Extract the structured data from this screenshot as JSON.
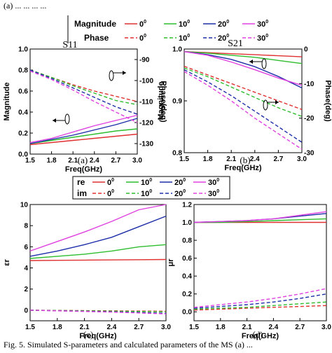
{
  "top_caption": "(a) ... ... ... ...",
  "bottom_caption": "Fig. 5. Simulated S-parameters and calculated parameters of the MS (a) ...",
  "legend_top": {
    "row1_label": "Magnitude",
    "row2_label": "Phase",
    "angles": [
      "0",
      "10",
      "20",
      "30"
    ],
    "degree_mark": "0"
  },
  "legend_bottom": {
    "row1_label": "re",
    "row2_label": "im",
    "angles": [
      "0",
      "10",
      "20",
      "30"
    ],
    "degree_mark": "0"
  },
  "colors": {
    "s0": "#e03030",
    "s10": "#2ebd2e",
    "s20": "#1d2ea8",
    "s30": "#e040e0"
  },
  "chart_data": [
    {
      "id": "a",
      "type": "line",
      "title": "S11",
      "panel_label": "(a)",
      "xlabel": "Freq(GHz)",
      "ylabel": "Magnitude",
      "y2label": "Phase(deg)",
      "xlim": [
        1.5,
        3.0
      ],
      "ylim": [
        0.0,
        1.0
      ],
      "y2lim": [
        -135,
        -85
      ],
      "xticks": [
        "1.5",
        "1.8",
        "2.1",
        "2.4",
        "2.7",
        "3.0"
      ],
      "yticks": [
        "0.0",
        "0.2",
        "0.4",
        "0.6",
        "0.8",
        "1.0"
      ],
      "y2ticks": [
        "-90",
        "-100",
        "-110",
        "-120",
        "-130"
      ],
      "x": [
        1.5,
        1.8,
        2.1,
        2.4,
        2.7,
        3.0
      ],
      "series": [
        {
          "name": "Magnitude 0",
          "axis": "y",
          "style": "solid",
          "values": [
            0.09,
            0.11,
            0.13,
            0.15,
            0.17,
            0.19
          ]
        },
        {
          "name": "Magnitude 10",
          "axis": "y",
          "style": "solid",
          "values": [
            0.1,
            0.13,
            0.16,
            0.19,
            0.22,
            0.24
          ]
        },
        {
          "name": "Magnitude 20",
          "axis": "y",
          "style": "solid",
          "values": [
            0.1,
            0.14,
            0.18,
            0.23,
            0.28,
            0.34
          ]
        },
        {
          "name": "Magnitude 30",
          "axis": "y",
          "style": "solid",
          "values": [
            0.11,
            0.15,
            0.21,
            0.27,
            0.32,
            0.37
          ]
        },
        {
          "name": "Phase 0",
          "axis": "y2",
          "style": "dashed",
          "values": [
            -95.0,
            -98.5,
            -102.0,
            -105.0,
            -107.5,
            -110.0
          ]
        },
        {
          "name": "Phase 10",
          "axis": "y2",
          "style": "dashed",
          "values": [
            -95.0,
            -98.5,
            -102.5,
            -106.0,
            -109.5,
            -111.5
          ]
        },
        {
          "name": "Phase 20",
          "axis": "y2",
          "style": "dashed",
          "values": [
            -95.0,
            -99.0,
            -103.5,
            -108.0,
            -112.5,
            -116.0
          ]
        },
        {
          "name": "Phase 30",
          "axis": "y2",
          "style": "dashed",
          "values": [
            -95.5,
            -99.5,
            -104.5,
            -110.0,
            -115.0,
            -120.0
          ]
        }
      ]
    },
    {
      "id": "b",
      "type": "line",
      "title": "S21",
      "panel_label": "(b)",
      "xlabel": "Freq(GHz)",
      "ylabel": "Magnitude",
      "y2label": "Phase(deg)",
      "xlim": [
        1.5,
        3.0
      ],
      "ylim": [
        0.8,
        1.0
      ],
      "y2lim": [
        -30,
        0
      ],
      "xticks": [
        "1.5",
        "1.8",
        "2.1",
        "2.4",
        "2.7",
        "3.0"
      ],
      "yticks": [
        "0.8",
        "0.9",
        "1.0"
      ],
      "y2ticks": [
        "0",
        "-10",
        "-20",
        "-30"
      ],
      "x": [
        1.5,
        1.8,
        2.1,
        2.4,
        2.7,
        3.0
      ],
      "series": [
        {
          "name": "Magnitude 0",
          "axis": "y",
          "style": "solid",
          "values": [
            0.995,
            0.993,
            0.991,
            0.989,
            0.987,
            0.985
          ]
        },
        {
          "name": "Magnitude 10",
          "axis": "y",
          "style": "solid",
          "values": [
            0.995,
            0.992,
            0.988,
            0.984,
            0.978,
            0.972
          ]
        },
        {
          "name": "Magnitude 20",
          "axis": "y",
          "style": "solid",
          "values": [
            0.995,
            0.989,
            0.98,
            0.966,
            0.947,
            0.925
          ]
        },
        {
          "name": "Magnitude 30",
          "axis": "y",
          "style": "solid",
          "values": [
            0.995,
            0.988,
            0.975,
            0.96,
            0.944,
            0.93
          ]
        },
        {
          "name": "Phase 0",
          "axis": "y2",
          "style": "dashed",
          "values": [
            -5.0,
            -7.5,
            -10.0,
            -12.5,
            -15.0,
            -17.5
          ]
        },
        {
          "name": "Phase 10",
          "axis": "y2",
          "style": "dashed",
          "values": [
            -5.5,
            -8.0,
            -11.0,
            -14.0,
            -17.0,
            -19.5
          ]
        },
        {
          "name": "Phase 20",
          "axis": "y2",
          "style": "dashed",
          "values": [
            -6.0,
            -9.5,
            -13.5,
            -18.0,
            -22.5,
            -27.0
          ]
        },
        {
          "name": "Phase 30",
          "axis": "y2",
          "style": "dashed",
          "values": [
            -6.5,
            -10.5,
            -15.0,
            -20.0,
            -24.5,
            -29.0
          ]
        }
      ]
    },
    {
      "id": "c",
      "type": "line",
      "panel_label": "(c)",
      "xlabel": "Freq(GHz)",
      "ylabel": "εr",
      "xlim": [
        1.5,
        3.0
      ],
      "ylim": [
        -1,
        10
      ],
      "xticks": [
        "1.5",
        "1.8",
        "2.1",
        "2.4",
        "2.7",
        "3.0"
      ],
      "yticks": [
        "0",
        "2",
        "4",
        "6",
        "8",
        "10"
      ],
      "x": [
        1.5,
        1.8,
        2.1,
        2.4,
        2.7,
        3.0
      ],
      "series": [
        {
          "name": "re 0",
          "style": "solid",
          "values": [
            4.7,
            4.72,
            4.74,
            4.76,
            4.78,
            4.8
          ]
        },
        {
          "name": "re 10",
          "style": "solid",
          "values": [
            4.9,
            5.1,
            5.3,
            5.6,
            6.0,
            6.2
          ]
        },
        {
          "name": "re 20",
          "style": "solid",
          "values": [
            5.1,
            5.6,
            6.2,
            6.9,
            7.9,
            8.9
          ]
        },
        {
          "name": "re 30",
          "style": "solid",
          "values": [
            5.6,
            6.5,
            7.4,
            8.4,
            9.5,
            10.0
          ]
        },
        {
          "name": "im 0",
          "style": "dashed",
          "values": [
            0.0,
            -0.02,
            -0.04,
            -0.06,
            -0.08,
            -0.1
          ]
        },
        {
          "name": "im 10",
          "style": "dashed",
          "values": [
            0.0,
            -0.03,
            -0.06,
            -0.09,
            -0.12,
            -0.15
          ]
        },
        {
          "name": "im 20",
          "style": "dashed",
          "values": [
            0.0,
            -0.05,
            -0.1,
            -0.15,
            -0.22,
            -0.3
          ]
        },
        {
          "name": "im 30",
          "style": "dashed",
          "values": [
            0.0,
            -0.06,
            -0.12,
            -0.18,
            -0.26,
            -0.35
          ]
        }
      ]
    },
    {
      "id": "d",
      "type": "line",
      "panel_label": "(d)",
      "xlabel": "Freq(GHz)",
      "ylabel": "μr",
      "xlim": [
        1.5,
        3.0
      ],
      "ylim": [
        -0.1,
        1.2
      ],
      "xticks": [
        "1.5",
        "1.8",
        "2.1",
        "2.4",
        "2.7",
        "3.0"
      ],
      "yticks": [
        "0.0",
        "0.2",
        "0.4",
        "0.6",
        "0.8",
        "1.0",
        "1.2"
      ],
      "x": [
        1.5,
        1.8,
        2.1,
        2.4,
        2.7,
        3.0
      ],
      "series": [
        {
          "name": "re 0",
          "style": "solid",
          "values": [
            1.0,
            1.0,
            1.0,
            1.0,
            1.0,
            1.0
          ]
        },
        {
          "name": "re 10",
          "style": "solid",
          "values": [
            1.0,
            1.0,
            1.01,
            1.02,
            1.03,
            1.04
          ]
        },
        {
          "name": "re 20",
          "style": "solid",
          "values": [
            1.0,
            1.01,
            1.02,
            1.04,
            1.07,
            1.1
          ]
        },
        {
          "name": "re 30",
          "style": "solid",
          "values": [
            1.0,
            1.01,
            1.02,
            1.04,
            1.08,
            1.12
          ]
        },
        {
          "name": "im 0",
          "style": "dashed",
          "values": [
            0.02,
            0.03,
            0.04,
            0.05,
            0.06,
            0.07
          ]
        },
        {
          "name": "im 10",
          "style": "dashed",
          "values": [
            0.03,
            0.04,
            0.05,
            0.07,
            0.09,
            0.11
          ]
        },
        {
          "name": "im 20",
          "style": "dashed",
          "values": [
            0.04,
            0.06,
            0.08,
            0.11,
            0.15,
            0.2
          ]
        },
        {
          "name": "im 30",
          "style": "dashed",
          "values": [
            0.05,
            0.08,
            0.11,
            0.15,
            0.2,
            0.26
          ]
        }
      ]
    }
  ]
}
